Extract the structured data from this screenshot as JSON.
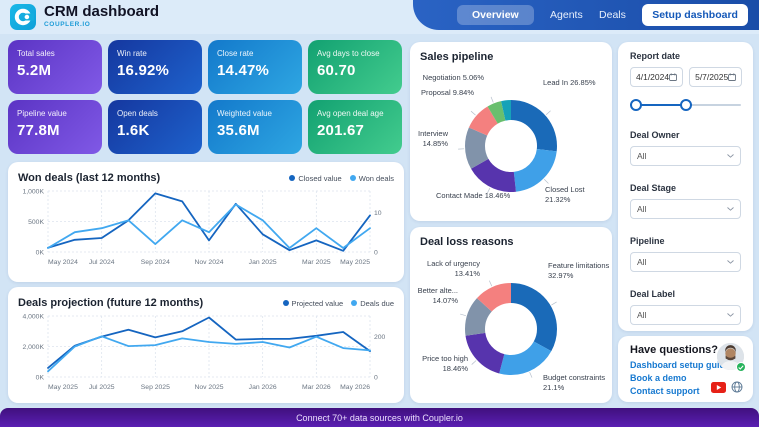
{
  "header": {
    "title": "CRM dashboard",
    "brand": "COUPLER.IO",
    "nav": [
      {
        "label": "Overview",
        "active": true
      },
      {
        "label": "Agents",
        "active": false
      },
      {
        "label": "Deals",
        "active": false
      }
    ],
    "setup_button": "Setup dashboard"
  },
  "kpis": [
    {
      "label": "Total sales",
      "value": "5.2M",
      "gradient": [
        "#5b34c4",
        "#8059e6"
      ]
    },
    {
      "label": "Win rate",
      "value": "16.92%",
      "gradient": [
        "#15379f",
        "#1e62cc"
      ]
    },
    {
      "label": "Close rate",
      "value": "14.47%",
      "gradient": [
        "#1379cb",
        "#2ea6e2"
      ]
    },
    {
      "label": "Avg days to close",
      "value": "60.70",
      "gradient": [
        "#12a171",
        "#43cc8e"
      ]
    },
    {
      "label": "Pipeline value",
      "value": "77.8M",
      "gradient": [
        "#5b34c4",
        "#8059e6"
      ]
    },
    {
      "label": "Open deals",
      "value": "1.6K",
      "gradient": [
        "#15379f",
        "#1e62cc"
      ]
    },
    {
      "label": "Weighted value",
      "value": "35.6M",
      "gradient": [
        "#1379cb",
        "#2ea6e2"
      ]
    },
    {
      "label": "Avg open deal age",
      "value": "201.67",
      "gradient": [
        "#12a171",
        "#43cc8e"
      ]
    }
  ],
  "chart_data": [
    {
      "id": "won_deals",
      "type": "line",
      "title": "Won deals (last 12 months)",
      "x": [
        "May 2024",
        "Jun 2024",
        "Jul 2024",
        "Aug 2024",
        "Sep 2024",
        "Oct 2024",
        "Nov 2024",
        "Dec 2024",
        "Jan 2025",
        "Feb 2025",
        "Mar 2025",
        "Apr 2025",
        "May 2025"
      ],
      "label_every": 2,
      "left_max": 1000,
      "right_max": 15.4,
      "left_ticks": [
        {
          "value": 0,
          "label": "0K"
        },
        {
          "value": 500,
          "label": "500K"
        },
        {
          "value": 1000,
          "label": "1,000K"
        }
      ],
      "right_ticks": [
        {
          "value": 0,
          "label": "0"
        },
        {
          "value": 10,
          "label": "10"
        }
      ],
      "grid": true,
      "legend_position": "top-right",
      "series": [
        {
          "name": "Closed value",
          "axis": "left",
          "color": "#1565c0",
          "values": [
            70,
            200,
            230,
            520,
            960,
            830,
            190,
            790,
            290,
            30,
            190,
            20,
            600
          ]
        },
        {
          "name": "Won deals",
          "axis": "right",
          "color": "#41a8f0",
          "values": [
            1,
            5,
            6,
            8,
            2,
            8,
            5,
            12,
            8,
            1,
            6,
            1,
            6
          ]
        }
      ]
    },
    {
      "id": "deals_projection",
      "type": "line",
      "title": "Deals projection (future 12 months)",
      "x": [
        "May 2025",
        "Jun 2025",
        "Jul 2025",
        "Aug 2025",
        "Sep 2025",
        "Oct 2025",
        "Nov 2025",
        "Dec 2025",
        "Jan 2026",
        "Feb 2026",
        "Mar 2026",
        "Apr 2026",
        "May 2026"
      ],
      "label_every": 2,
      "left_max": 4000,
      "right_max": 300,
      "left_ticks": [
        {
          "value": 0,
          "label": "0K"
        },
        {
          "value": 2000,
          "label": "2,000K"
        },
        {
          "value": 4000,
          "label": "4,000K"
        }
      ],
      "right_ticks": [
        {
          "value": 0,
          "label": "0"
        },
        {
          "value": 200,
          "label": "200"
        }
      ],
      "grid": true,
      "legend_position": "top-right",
      "series": [
        {
          "name": "Projected value",
          "axis": "left",
          "color": "#1565c0",
          "values": [
            600,
            2050,
            2650,
            3100,
            2600,
            3000,
            3900,
            2450,
            2500,
            2500,
            2700,
            2950,
            1700
          ]
        },
        {
          "name": "Deals due",
          "axis": "right",
          "color": "#41a8f0",
          "values": [
            28,
            150,
            200,
            152,
            157,
            190,
            172,
            163,
            172,
            145,
            198,
            142,
            131
          ]
        }
      ]
    },
    {
      "id": "sales_pipeline",
      "type": "donut",
      "title": "Sales pipeline",
      "slices": [
        {
          "label": "Lead In",
          "pct": "26.85%",
          "value": 26.85,
          "color": "#1a6ab8"
        },
        {
          "label": "Closed Lost",
          "pct": "21.32%",
          "value": 21.32,
          "color": "#3fa0e8"
        },
        {
          "label": "Contact Made",
          "pct": "18.46%",
          "value": 18.46,
          "color": "#5734ad"
        },
        {
          "label": "Interview",
          "pct": "14.85%",
          "value": 14.85,
          "color": "#8193aa"
        },
        {
          "label": "Proposal",
          "pct": "9.84%",
          "value": 9.84,
          "color": "#f4807f"
        },
        {
          "label": "Negotiation",
          "pct": "5.06%",
          "value": 5.06,
          "color": "#69bf6e"
        },
        {
          "label": "",
          "pct": "",
          "value": 3.62,
          "color": "#16a2b8"
        }
      ]
    },
    {
      "id": "deal_loss",
      "type": "donut",
      "title": "Deal loss reasons",
      "slices": [
        {
          "label": "Feature limitations",
          "pct": "32.97%",
          "value": 32.97,
          "color": "#1a6ab8"
        },
        {
          "label": "Budget constraints",
          "pct": "21.1%",
          "value": 21.1,
          "color": "#3fa0e8"
        },
        {
          "label": "Price too high",
          "pct": "18.46%",
          "value": 18.46,
          "color": "#5734ad"
        },
        {
          "label": "Better alte...",
          "pct": "14.07%",
          "value": 14.07,
          "color": "#8193aa"
        },
        {
          "label": "Lack of urgency",
          "pct": "13.41%",
          "value": 13.41,
          "color": "#f4807f"
        }
      ]
    }
  ],
  "sidebar": {
    "report_date_label": "Report date",
    "date_from": "4/1/2024",
    "date_to": "5/7/2025",
    "filters": [
      {
        "label": "Deal Owner",
        "value": "All"
      },
      {
        "label": "Deal Stage",
        "value": "All"
      },
      {
        "label": "Pipeline",
        "value": "All"
      },
      {
        "label": "Deal Label",
        "value": "All"
      }
    ]
  },
  "help": {
    "title": "Have questions?",
    "links": [
      "Dashboard setup guide",
      "Book a demo",
      "Contact support"
    ]
  },
  "banner": {
    "text": "Connect 70+ data sources with Coupler.io"
  }
}
